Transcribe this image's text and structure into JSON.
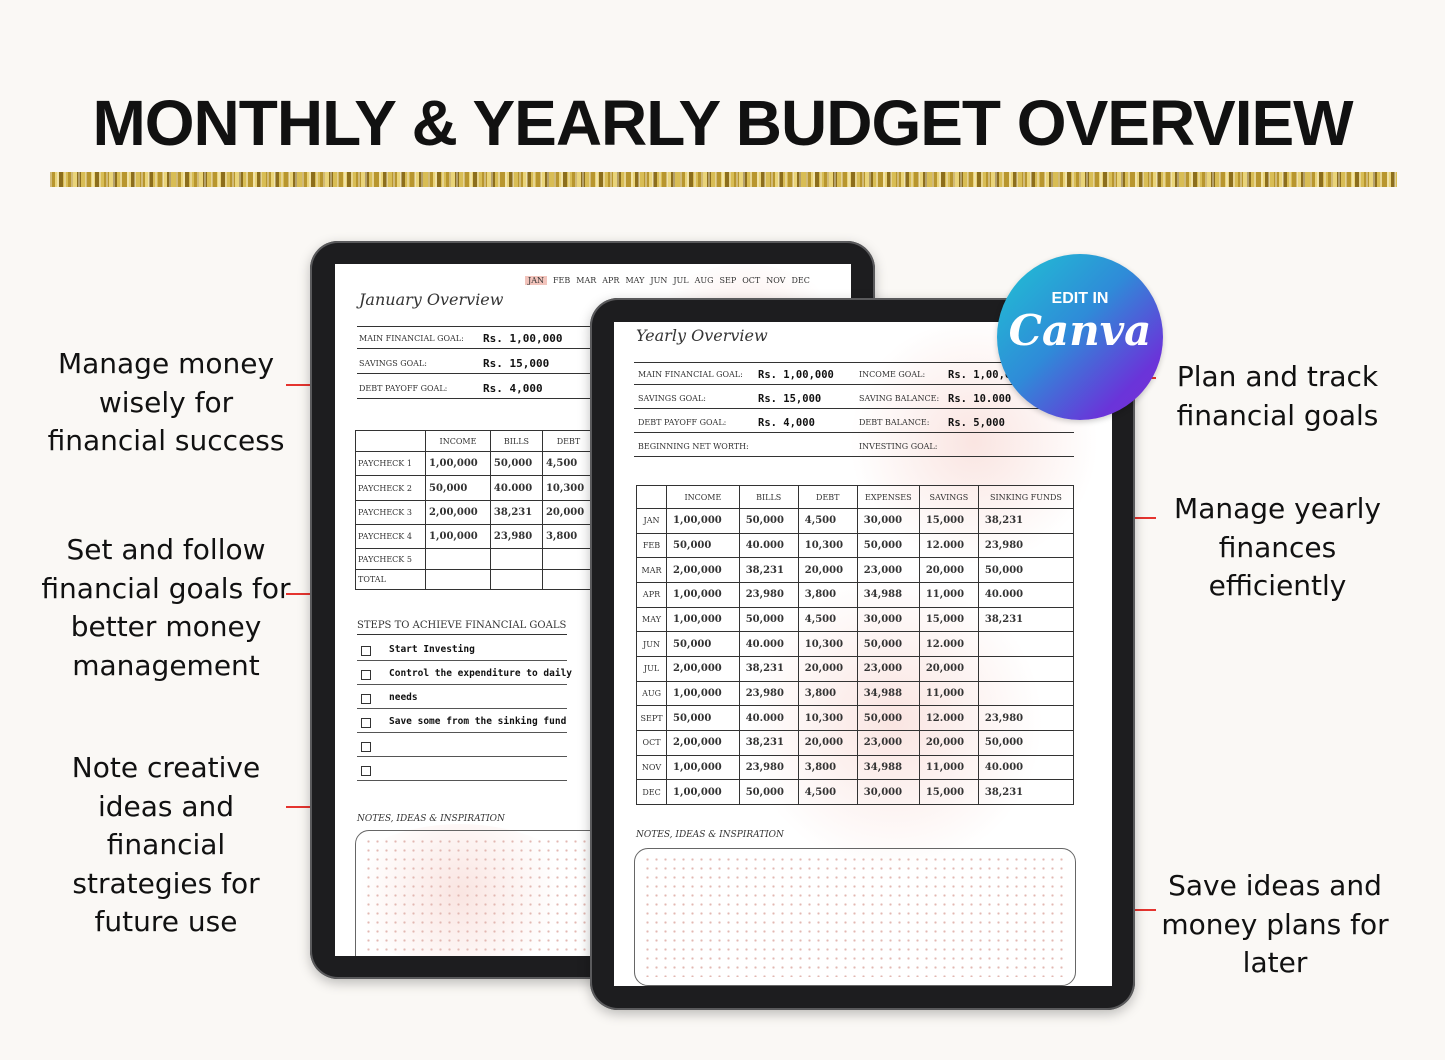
{
  "title": "MONTHLY & YEARLY BUDGET OVERVIEW",
  "callouts_left": [
    "Manage money wisely for financial success",
    "Set and follow financial goals for better money management",
    "Note creative ideas and financial strategies for future use"
  ],
  "callouts_right": [
    "Plan and track financial goals",
    "Manage yearly finances efficiently",
    "Save ideas and money plans for later"
  ],
  "badge": {
    "top": "EDIT IN",
    "brand": "Canva"
  },
  "monthly": {
    "months": [
      "JAN",
      "FEB",
      "MAR",
      "APR",
      "MAY",
      "JUN",
      "JUL",
      "AUG",
      "SEP",
      "OCT",
      "NOV",
      "DEC"
    ],
    "title": "January Overview",
    "goals": [
      {
        "label": "MAIN FINANCIAL GOAL:",
        "value": "Rs. 1,00,000"
      },
      {
        "label": "SAVINGS GOAL:",
        "value": "Rs. 15,000"
      },
      {
        "label": "DEBT PAYOFF GOAL:",
        "value": "Rs. 4,000"
      }
    ],
    "columns": [
      "",
      "INCOME",
      "BILLS",
      "DEBT"
    ],
    "rows": [
      [
        "PAYCHECK 1",
        "1,00,000",
        "50,000",
        "4,500"
      ],
      [
        "PAYCHECK 2",
        "50,000",
        "40.000",
        "10,300"
      ],
      [
        "PAYCHECK 3",
        "2,00,000",
        "38,231",
        "20,000"
      ],
      [
        "PAYCHECK 4",
        "1,00,000",
        "23,980",
        "3,800"
      ],
      [
        "PAYCHECK 5",
        "",
        "",
        ""
      ],
      [
        "TOTAL",
        "",
        "",
        ""
      ]
    ],
    "steps_heading": "STEPS TO ACHIEVE FINANCIAL GOALS",
    "steps": [
      "Start Investing",
      "Control the expenditure to daily",
      "needs",
      "Save some from the sinking fund",
      "",
      ""
    ],
    "notes_heading": "NOTES, IDEAS & INSPIRATION"
  },
  "yearly": {
    "title": "Yearly Overview",
    "goals_left": [
      {
        "label": "MAIN FINANCIAL GOAL:",
        "value": "Rs. 1,00,000"
      },
      {
        "label": "SAVINGS GOAL:",
        "value": "Rs. 15,000"
      },
      {
        "label": "DEBT PAYOFF GOAL:",
        "value": "Rs. 4,000"
      },
      {
        "label": "BEGINNING NET WORTH:",
        "value": ""
      }
    ],
    "goals_right": [
      {
        "label": "INCOME GOAL:",
        "value": "Rs. 1,00,000"
      },
      {
        "label": "SAVING BALANCE:",
        "value": "Rs. 10.000"
      },
      {
        "label": "DEBT BALANCE:",
        "value": "Rs. 5,000"
      },
      {
        "label": "INVESTING GOAL:",
        "value": ""
      }
    ],
    "columns": [
      "",
      "INCOME",
      "BILLS",
      "DEBT",
      "EXPENSES",
      "SAVINGS",
      "SINKING FUNDS"
    ],
    "rows": [
      [
        "JAN",
        "1,00,000",
        "50,000",
        "4,500",
        "30,000",
        "15,000",
        "38,231"
      ],
      [
        "FEB",
        "50,000",
        "40.000",
        "10,300",
        "50,000",
        "12.000",
        "23,980"
      ],
      [
        "MAR",
        "2,00,000",
        "38,231",
        "20,000",
        "23,000",
        "20,000",
        "50,000"
      ],
      [
        "APR",
        "1,00,000",
        "23,980",
        "3,800",
        "34,988",
        "11,000",
        "40.000"
      ],
      [
        "MAY",
        "1,00,000",
        "50,000",
        "4,500",
        "30,000",
        "15,000",
        "38,231"
      ],
      [
        "JUN",
        "50,000",
        "40.000",
        "10,300",
        "50,000",
        "12.000",
        ""
      ],
      [
        "JUL",
        "2,00,000",
        "38,231",
        "20,000",
        "23,000",
        "20,000",
        ""
      ],
      [
        "AUG",
        "1,00,000",
        "23,980",
        "3,800",
        "34,988",
        "11,000",
        ""
      ],
      [
        "SEPT",
        "50,000",
        "40.000",
        "10,300",
        "50,000",
        "12.000",
        "23,980"
      ],
      [
        "OCT",
        "2,00,000",
        "38,231",
        "20,000",
        "23,000",
        "20,000",
        "50,000"
      ],
      [
        "NOV",
        "1,00,000",
        "23,980",
        "3,800",
        "34,988",
        "11,000",
        "40.000"
      ],
      [
        "DEC",
        "1,00,000",
        "50,000",
        "4,500",
        "30,000",
        "15,000",
        "38,231"
      ]
    ],
    "notes_heading": "NOTES, IDEAS & INSPIRATION"
  }
}
